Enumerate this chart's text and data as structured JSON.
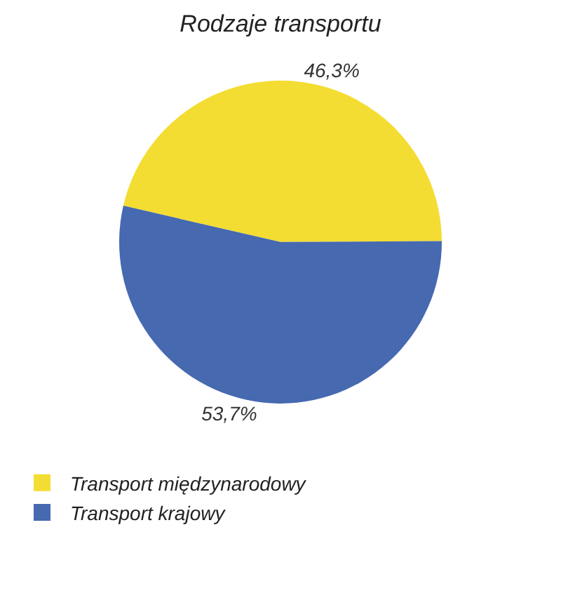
{
  "chart_data": {
    "type": "pie",
    "title": "Rodzaje transportu",
    "categories": [
      "Transport międzynarodowy",
      "Transport krajowy"
    ],
    "values": [
      46.3,
      53.7
    ],
    "value_labels": [
      "46,3%",
      "53,7%"
    ],
    "colors": [
      "#f4dd32",
      "#4669b0"
    ],
    "legend": "bottom left"
  }
}
